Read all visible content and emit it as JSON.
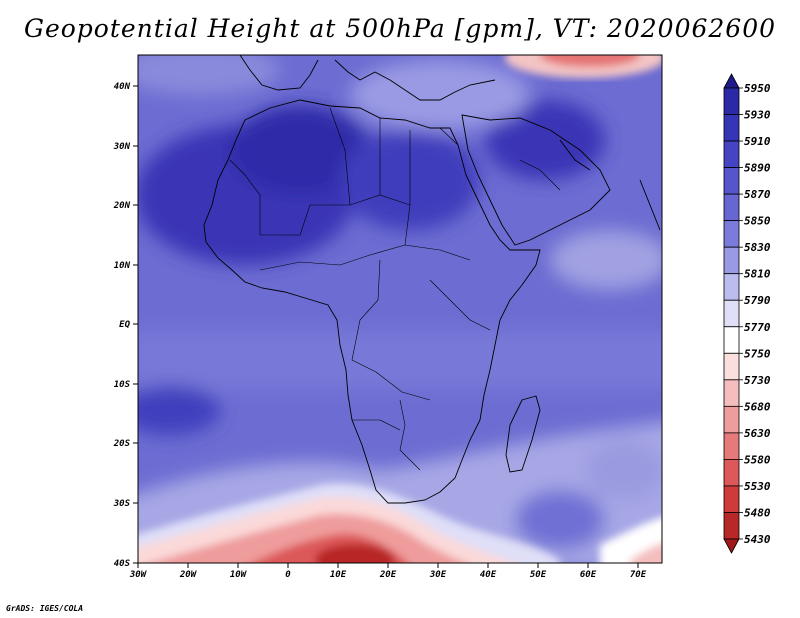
{
  "title": "Geopotential Height at 500hPa [gpm], VT: 2020062600",
  "footer": "GrADS: IGES/COLA",
  "map": {
    "lat_labels": [
      "40N",
      "30N",
      "20N",
      "10N",
      "EQ",
      "10S",
      "20S",
      "30S",
      "40S"
    ],
    "lon_labels": [
      "30W",
      "20W",
      "10W",
      "0",
      "10E",
      "20E",
      "30E",
      "40E",
      "50E",
      "60E",
      "70E"
    ]
  },
  "colorbar": {
    "levels": [
      "5950",
      "5930",
      "5910",
      "5890",
      "5870",
      "5850",
      "5830",
      "5810",
      "5790",
      "5770",
      "5750",
      "5730",
      "5680",
      "5630",
      "5580",
      "5530",
      "5480",
      "5430"
    ],
    "colors": [
      "#1e1a8c",
      "#2a2aa6",
      "#3535b8",
      "#4545c4",
      "#5656cc",
      "#6767d3",
      "#7b7bdc",
      "#9999e4",
      "#bcbcef",
      "#dfdff8",
      "#ffffff",
      "#fbdede",
      "#f5bdbd",
      "#ef9c9c",
      "#e67a7a",
      "#dd5858",
      "#cf3a3a",
      "#b82828",
      "#a01818"
    ]
  },
  "colors": {
    "ocean_base": "#7777d8",
    "land_outline": "#000000"
  }
}
